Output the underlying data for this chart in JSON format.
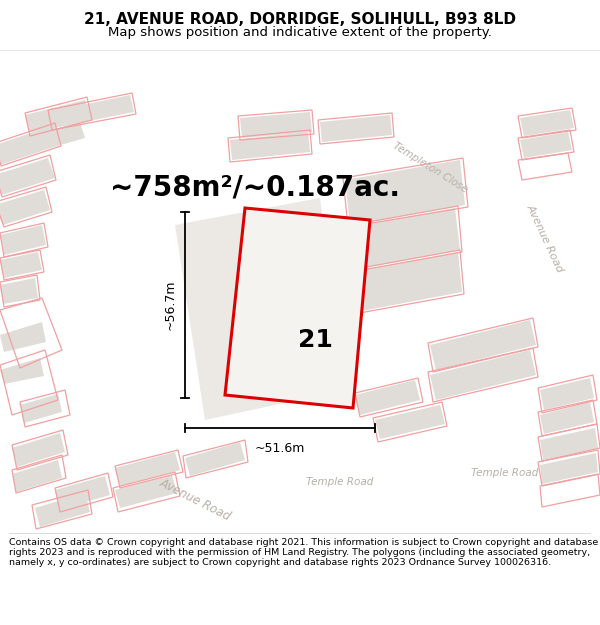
{
  "title": "21, AVENUE ROAD, DORRIDGE, SOLIHULL, B93 8LD",
  "subtitle": "Map shows position and indicative extent of the property.",
  "area_text": "~758m²/~0.187ac.",
  "dim_width": "~51.6m",
  "dim_height": "~56.7m",
  "label_number": "21",
  "footer": "Contains OS data © Crown copyright and database right 2021. This information is subject to Crown copyright and database rights 2023 and is reproduced with the permission of HM Land Registry. The polygons (including the associated geometry, namely x, y co-ordinates) are subject to Crown copyright and database rights 2023 Ordnance Survey 100026316.",
  "map_bg": "#f5f3f0",
  "road_fill": "#ffffff",
  "building_fill": "#e0dcd8",
  "property_outline_color": "#f0a0a0",
  "plot_outline_color": "#dd0000",
  "plot_fill_color": "#f5f3f0",
  "road_label_color": "#b8b0a8",
  "title_color": "#000000",
  "footer_color": "#000000",
  "title_fontsize": 11,
  "subtitle_fontsize": 9.5,
  "area_fontsize": 20,
  "label_fontsize": 18,
  "dim_fontsize": 9,
  "road_label_fontsize": 8,
  "footer_fontsize": 6.8
}
